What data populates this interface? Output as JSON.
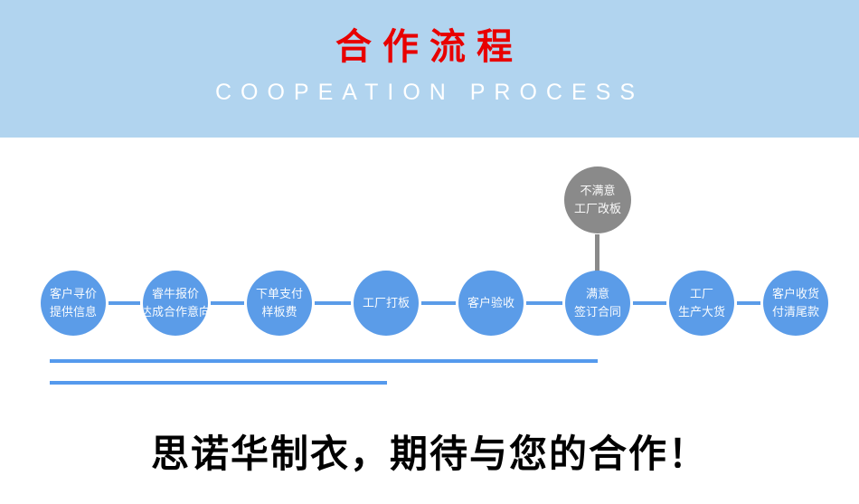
{
  "header": {
    "title": "合作流程",
    "subtitle": "COOPEATION PROCESS"
  },
  "flow": {
    "steps": [
      {
        "line1": "客户寻价",
        "line2": "提供信息"
      },
      {
        "line1": "睿牛报价",
        "line2": "达成合作意向"
      },
      {
        "line1": "下单支付",
        "line2": "样板费"
      },
      {
        "line1": "工厂打板",
        "line2": ""
      },
      {
        "line1": "客户验收",
        "line2": ""
      },
      {
        "line1": "满意",
        "line2": "签订合同"
      },
      {
        "line1": "工厂",
        "line2": "生产大货"
      },
      {
        "line1": "客户收货",
        "line2": "付清尾款"
      }
    ],
    "branch": {
      "line1": "不满意",
      "line2": "工厂改板"
    }
  },
  "footer": {
    "slogan": "思诺华制衣，期待与您的合作！"
  },
  "colors": {
    "header_bg": "#b1d4ef",
    "title_red": "#e80000",
    "subtitle_white": "#ffffff",
    "node_blue": "#5b9ce8",
    "branch_gray": "#8a8a8a",
    "rule_blue": "#559aed",
    "slogan_black": "#000000"
  }
}
